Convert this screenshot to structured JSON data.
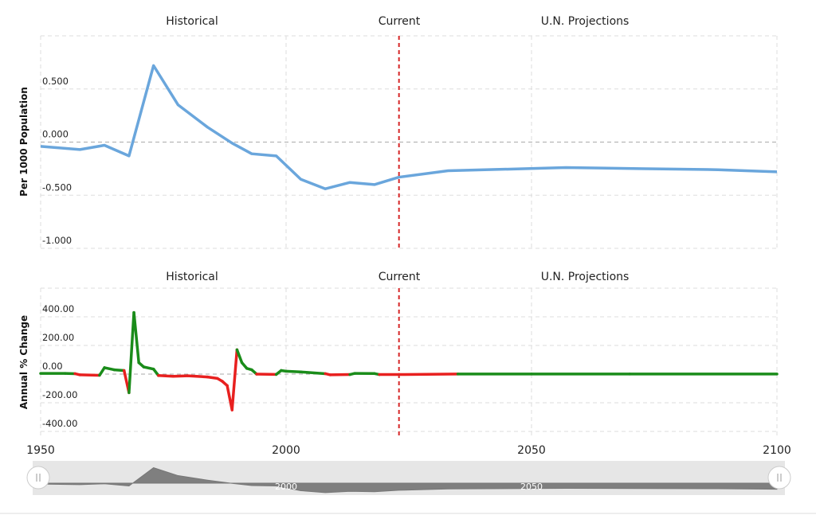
{
  "chart_data": [
    {
      "type": "line",
      "section_labels": [
        "Historical",
        "Current",
        "U.N. Projections"
      ],
      "y_label": "Per 1000 Population",
      "x": [
        1950,
        1958,
        1963,
        1968,
        1973,
        1978,
        1984,
        1989,
        1993,
        1998,
        2003,
        2008,
        2013,
        2018,
        2023,
        2033,
        2049,
        2057,
        2072,
        2088,
        2100
      ],
      "series": [
        {
          "color": "#6aa6dc",
          "values": [
            -0.04,
            -0.07,
            -0.03,
            -0.13,
            0.72,
            0.35,
            0.14,
            -0.01,
            -0.11,
            -0.13,
            -0.35,
            -0.44,
            -0.38,
            -0.4,
            -0.33,
            -0.27,
            -0.25,
            -0.24,
            -0.25,
            -0.26,
            -0.28
          ]
        }
      ],
      "xlim": [
        1950,
        2100
      ],
      "ylim": [
        -1,
        1
      ],
      "yticks": [
        {
          "value": -1,
          "label": "-1.000"
        },
        {
          "value": -0.5,
          "label": "-0.500"
        },
        {
          "value": 0,
          "label": "0.000"
        },
        {
          "value": 0.5,
          "label": "0.500"
        }
      ],
      "current_line": 2023,
      "current_color": "#d62728",
      "grid": true
    },
    {
      "type": "signed-line",
      "section_labels": [
        "Historical",
        "Current",
        "U.N. Projections"
      ],
      "y_label": "Annual % Change",
      "x": [
        1950,
        1955,
        1957,
        1958,
        1962,
        1963,
        1965,
        1967,
        1968,
        1969,
        1970,
        1971,
        1973,
        1974,
        1977,
        1980,
        1984,
        1986,
        1987,
        1988,
        1989,
        1990,
        1991,
        1992,
        1993,
        1994,
        1998,
        1999,
        2000,
        2003,
        2008,
        2009,
        2013,
        2014,
        2018,
        2019,
        2023,
        2035,
        2050,
        2070,
        2100
      ],
      "values": [
        5,
        5,
        3,
        -5,
        -8,
        45,
        30,
        25,
        -130,
        430,
        80,
        50,
        35,
        -10,
        -15,
        -12,
        -20,
        -30,
        -50,
        -80,
        -250,
        170,
        80,
        40,
        30,
        0,
        -2,
        25,
        20,
        15,
        3,
        -5,
        -3,
        5,
        4,
        -3,
        -3,
        1,
        1,
        1,
        1
      ],
      "color_positive": "#1a8c1a",
      "color_negative": "#e8201f",
      "xlim": [
        1950,
        2100
      ],
      "xticks": [
        1950,
        2000,
        2050,
        2100
      ],
      "ylim": [
        -450,
        600
      ],
      "yticks": [
        {
          "value": -400,
          "label": "-400.00"
        },
        {
          "value": -200,
          "label": "-200.00"
        },
        {
          "value": 0,
          "label": "0.00"
        },
        {
          "value": 200,
          "label": "200.00"
        },
        {
          "value": 400,
          "label": "400.00"
        }
      ],
      "current_line": 2023,
      "current_color": "#d62728",
      "grid": true
    }
  ]
}
